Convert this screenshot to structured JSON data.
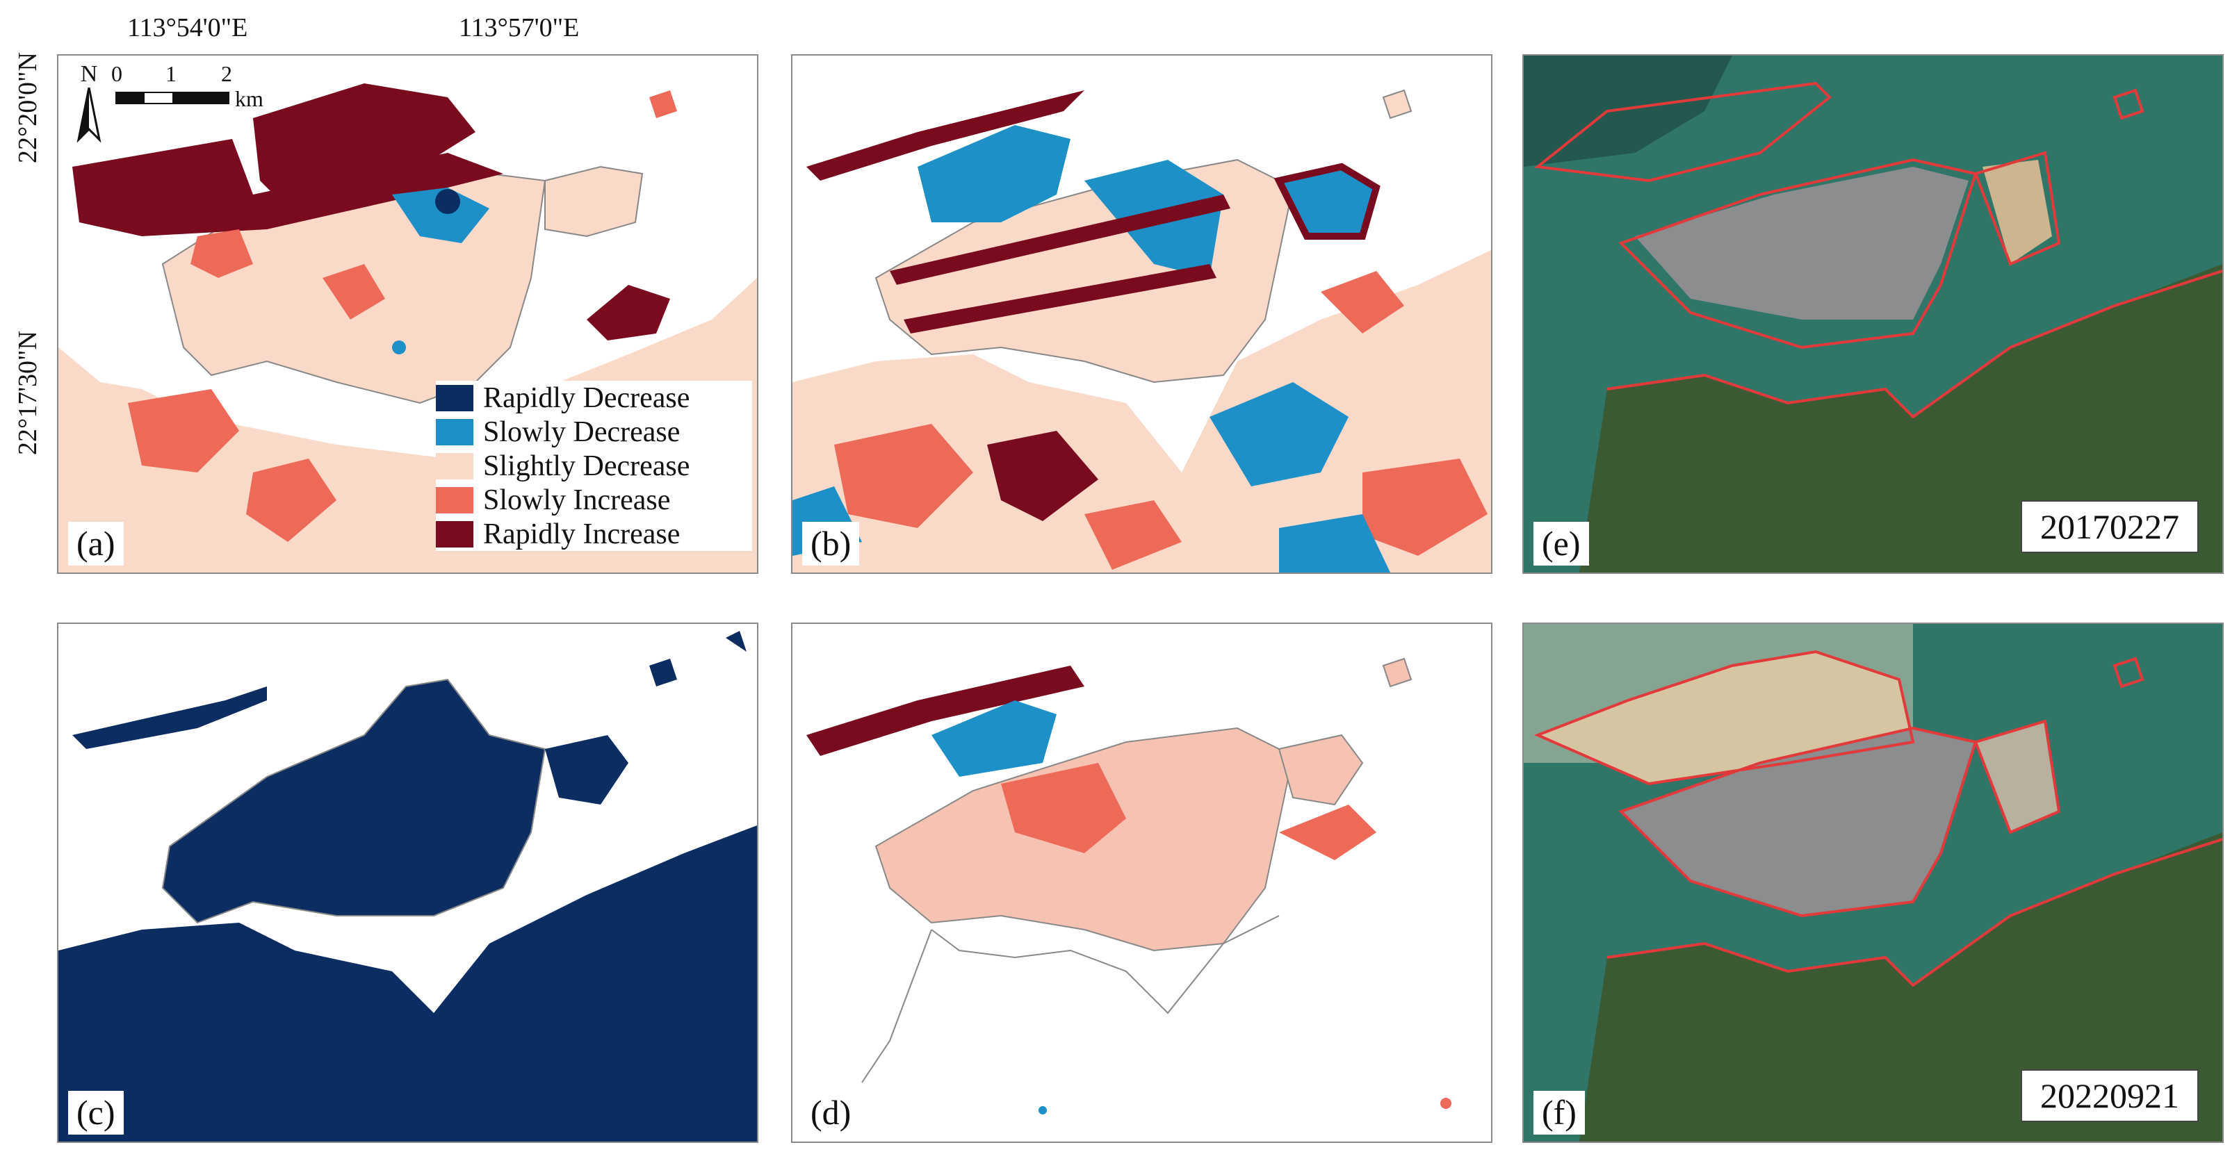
{
  "coordinates": {
    "longitudes": [
      "113°54'0\"E",
      "113°57'0\"E"
    ],
    "latitudes": [
      "22°20'0\"N",
      "22°17'30\"N"
    ]
  },
  "panels": [
    {
      "label": "(a)"
    },
    {
      "label": "(b)"
    },
    {
      "label": "(c)"
    },
    {
      "label": "(d)"
    },
    {
      "label": "(e)",
      "date": "20170227"
    },
    {
      "label": "(f)",
      "date": "20220921"
    }
  ],
  "legend": [
    {
      "label": "Rapidly Decrease",
      "color": "#0c2d62"
    },
    {
      "label": "Slowly Decrease",
      "color": "#1e90c8"
    },
    {
      "label": "Slightly Decrease",
      "color": "#fad9c8"
    },
    {
      "label": "Slowly Increase",
      "color": "#ee6a58"
    },
    {
      "label": "Rapidly Increase",
      "color": "#7a0a1e"
    }
  ],
  "north_arrow": {
    "label": "N"
  },
  "scale_bar": {
    "ticks": [
      "0",
      "1",
      "2"
    ],
    "unit": "km"
  },
  "colors": {
    "outline_red": "#e23a3a",
    "sea": "#2d6e63",
    "land_green": "#3b5a34"
  }
}
